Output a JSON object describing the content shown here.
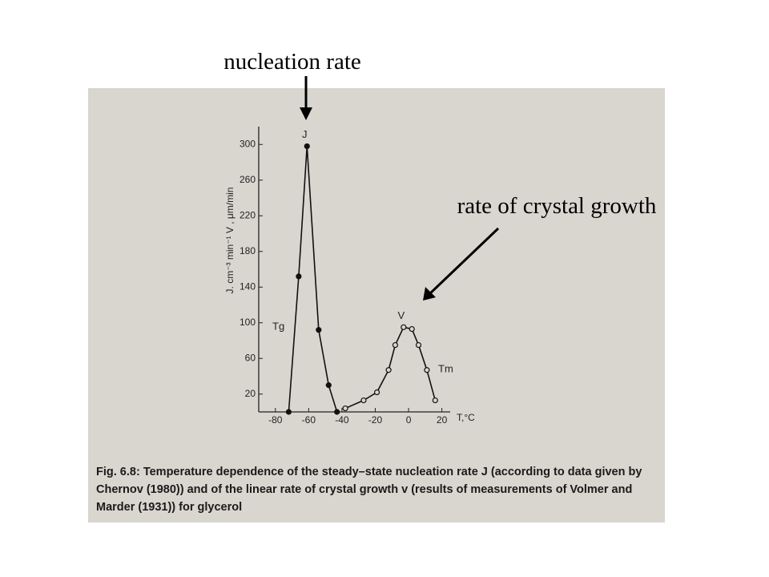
{
  "slide_labels": [
    "nucleation rate",
    "rate of crystal growth"
  ],
  "caption": {
    "label": "Fig. 6.8:",
    "text": "Temperature dependence of the steady–state nucleation rate J (according to data given by Chernov (1980)) and of the linear rate of crystal growth v (results of measurements of Volmer and Marder (1931)) for glycerol"
  },
  "chart_data": {
    "type": "line",
    "xlabel": "T,°C",
    "ylabel": "J. cm⁻³ min⁻¹   V , μm/min",
    "annotations": [
      "Tg",
      "Tm"
    ],
    "xlim": [
      -90,
      25
    ],
    "xticks": [
      -80,
      -60,
      -40,
      -20,
      0,
      20
    ],
    "ylim": [
      0,
      320
    ],
    "yticks": [
      20,
      60,
      100,
      140,
      180,
      220,
      260,
      300
    ],
    "series": [
      {
        "name": "J",
        "color": "#111111",
        "marker": "filled",
        "x": [
          -72,
          -66,
          -61,
          -54,
          -48,
          -43
        ],
        "values": [
          0,
          152,
          298,
          92,
          30,
          0
        ]
      },
      {
        "name": "V",
        "color": "#111111",
        "marker": "open",
        "x": [
          -38,
          -27,
          -19,
          -12,
          -8,
          -3,
          2,
          6,
          11,
          16
        ],
        "values": [
          4,
          13,
          22,
          47,
          75,
          95,
          93,
          75,
          47,
          13
        ]
      }
    ]
  }
}
